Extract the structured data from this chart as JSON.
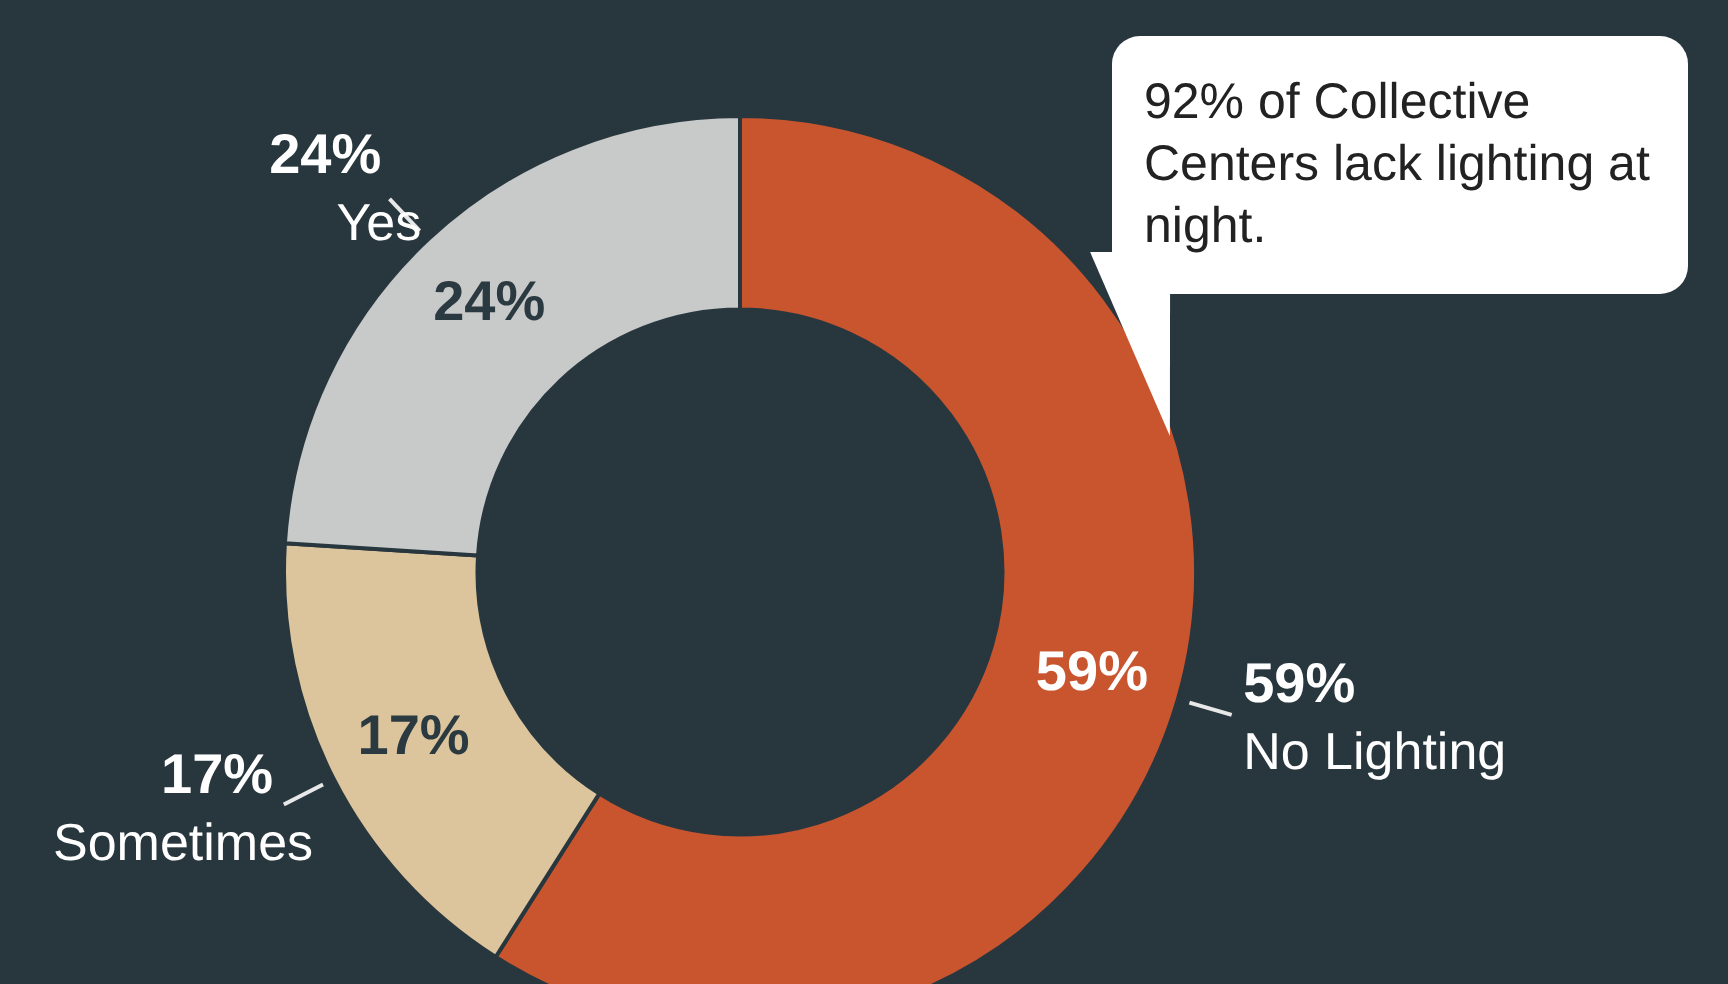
{
  "chart_data": {
    "type": "donut",
    "categories": [
      "No Lighting",
      "Sometimes",
      "Yes"
    ],
    "values": [
      59,
      17,
      24
    ],
    "value_labels": [
      "59%",
      "17%",
      "24%"
    ],
    "colors": [
      "#c9552f",
      "#dcc49c",
      "#c8c9c9"
    ],
    "legend": false,
    "annotations": [
      "92% of Collective Centers lack lighting at night."
    ]
  }
}
